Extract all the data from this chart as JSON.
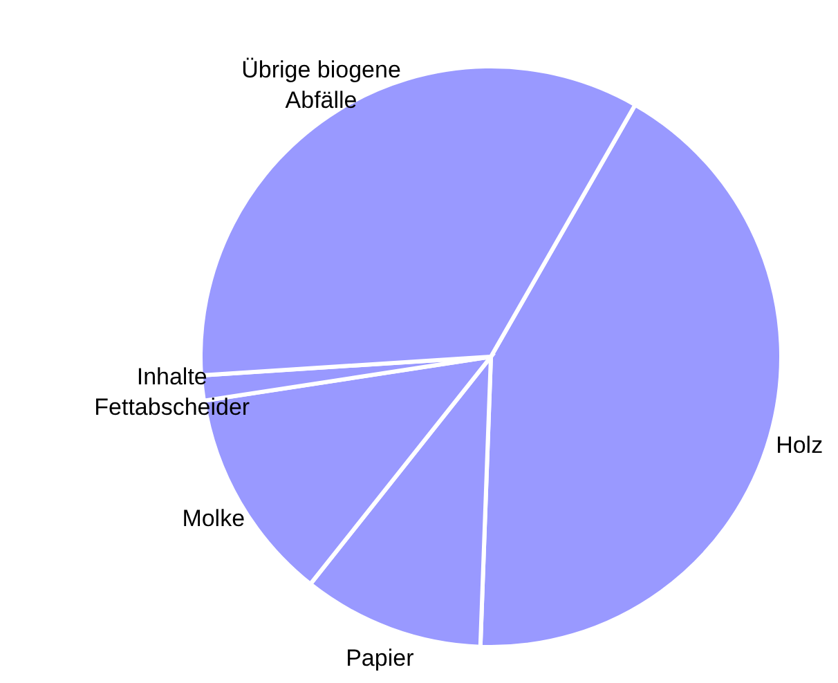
{
  "chart_data": {
    "type": "pie",
    "categories": [
      "Holz",
      "Papier",
      "Molke",
      "Inhalte Fettabscheider",
      "Übrige biogene Abfälle"
    ],
    "values": [
      42.3,
      10.1,
      11.9,
      1.4,
      34.3
    ],
    "colors": [
      "#9999ff",
      "#9999ff",
      "#9999ff",
      "#9999ff",
      "#9999ff"
    ]
  }
}
